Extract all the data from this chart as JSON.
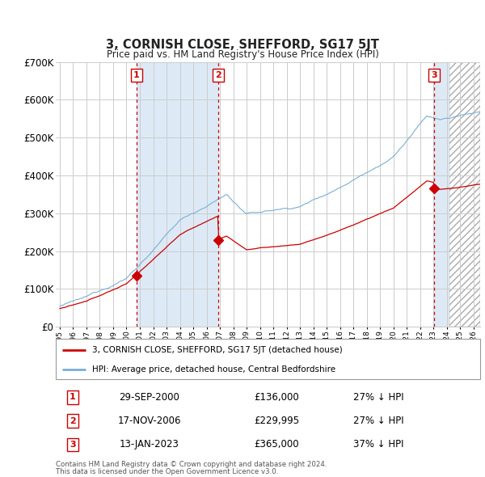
{
  "title": "3, CORNISH CLOSE, SHEFFORD, SG17 5JT",
  "subtitle": "Price paid vs. HM Land Registry's House Price Index (HPI)",
  "ylim": [
    0,
    700000
  ],
  "yticks": [
    0,
    100000,
    200000,
    300000,
    400000,
    500000,
    600000,
    700000
  ],
  "ytick_labels": [
    "£0",
    "£100K",
    "£200K",
    "£300K",
    "£400K",
    "£500K",
    "£600K",
    "£700K"
  ],
  "xlim_start": 1994.7,
  "xlim_end": 2026.5,
  "hatch_start": 2024.2,
  "transactions": [
    {
      "num": 1,
      "year": 2000.75,
      "price": 136000,
      "label": "29-SEP-2000",
      "price_str": "£136,000",
      "pct": "27% ↓ HPI"
    },
    {
      "num": 2,
      "year": 2006.88,
      "price": 229995,
      "label": "17-NOV-2006",
      "price_str": "£229,995",
      "pct": "27% ↓ HPI"
    },
    {
      "num": 3,
      "year": 2023.04,
      "price": 365000,
      "label": "13-JAN-2023",
      "price_str": "£365,000",
      "pct": "37% ↓ HPI"
    }
  ],
  "legend_red": "3, CORNISH CLOSE, SHEFFORD, SG17 5JT (detached house)",
  "legend_blue": "HPI: Average price, detached house, Central Bedfordshire",
  "footer1": "Contains HM Land Registry data © Crown copyright and database right 2024.",
  "footer2": "This data is licensed under the Open Government Licence v3.0.",
  "red_color": "#cc0000",
  "blue_color": "#7aafd4",
  "shade_color": "#ddeaf6",
  "grid_color": "#cccccc",
  "title_color": "#222222"
}
